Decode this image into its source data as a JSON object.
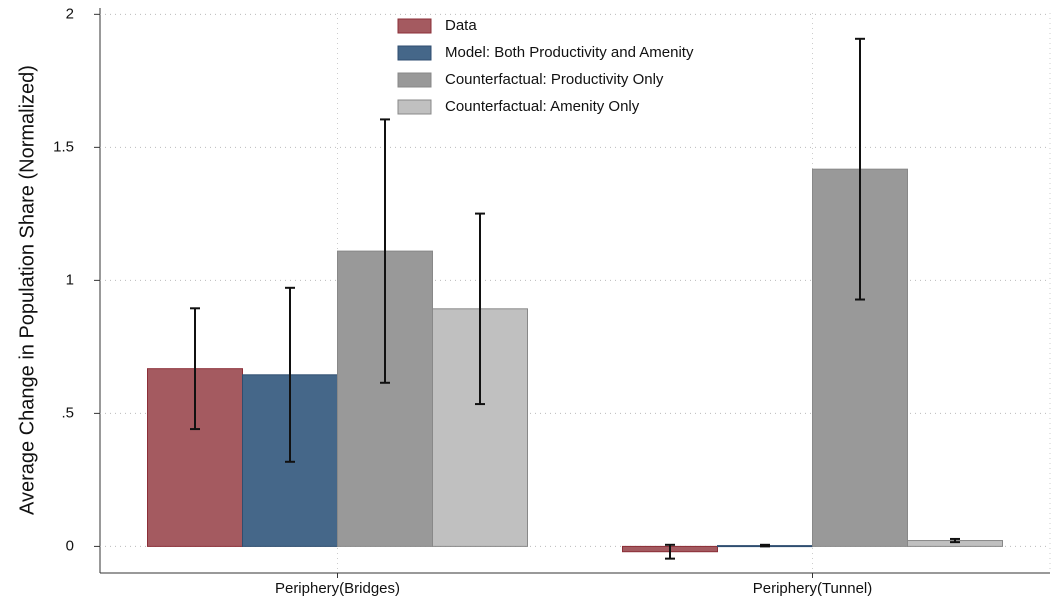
{
  "chart_data": {
    "type": "bar",
    "y_label": "Average Change in Population Share (Normalized)",
    "categories": [
      "Periphery(Bridges)",
      "Periphery(Tunnel)"
    ],
    "series": [
      {
        "name": "Data",
        "color": "#a45a60",
        "values": [
          0.668,
          -0.02
        ],
        "errors": [
          0.227,
          0.026
        ]
      },
      {
        "name": "Model: Both Productivity and Amenity",
        "color": "#456789",
        "values": [
          0.645,
          0.003
        ],
        "errors": [
          0.327,
          0.003
        ]
      },
      {
        "name": "Counterfactual: Productivity Only",
        "color": "#999999",
        "values": [
          1.11,
          1.418
        ],
        "errors": [
          0.495,
          0.49
        ]
      },
      {
        "name": "Counterfactual: Amenity Only",
        "color": "#c0c0c0",
        "values": [
          0.893,
          0.022
        ],
        "errors": [
          0.358,
          0.006
        ]
      }
    ],
    "ylim": [
      -0.1,
      2.005
    ],
    "yticks": [
      0,
      {
        "value": 0.5,
        "label": ".5"
      },
      1,
      1.5,
      2
    ],
    "grid": true,
    "legend": "top"
  }
}
